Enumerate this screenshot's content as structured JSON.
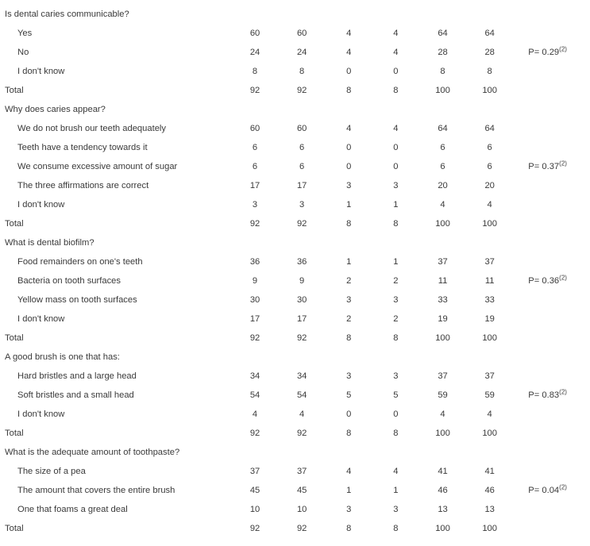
{
  "font_color": "#3a3a3a",
  "background": "#ffffff",
  "groups": [
    {
      "question": "Is dental caries communicable?",
      "p_value": "P= 0.29",
      "p_sup": "(2)",
      "p_span_start": 1,
      "p_span_rows": 3,
      "rows": [
        {
          "type": "answer",
          "label": "Yes",
          "vals": [
            "60",
            "60",
            "4",
            "4",
            "64",
            "64"
          ]
        },
        {
          "type": "answer",
          "label": "No",
          "vals": [
            "24",
            "24",
            "4",
            "4",
            "28",
            "28"
          ]
        },
        {
          "type": "answer",
          "label": "I don't know",
          "vals": [
            "8",
            "8",
            "0",
            "0",
            "8",
            "8"
          ]
        },
        {
          "type": "total",
          "label": "Total",
          "vals": [
            "92",
            "92",
            "8",
            "8",
            "100",
            "100"
          ]
        }
      ]
    },
    {
      "question": "Why does caries appear?",
      "p_value": "P= 0.37",
      "p_sup": "(2)",
      "p_span_start": 2,
      "p_span_rows": 3,
      "rows": [
        {
          "type": "answer",
          "label": "We do not brush our teeth adequately",
          "vals": [
            "60",
            "60",
            "4",
            "4",
            "64",
            "64"
          ]
        },
        {
          "type": "answer",
          "label": "Teeth have a tendency towards it",
          "vals": [
            "6",
            "6",
            "0",
            "0",
            "6",
            "6"
          ]
        },
        {
          "type": "answer",
          "label": "We consume excessive amount of sugar",
          "vals": [
            "6",
            "6",
            "0",
            "0",
            "6",
            "6"
          ]
        },
        {
          "type": "answer",
          "label": "The three affirmations are correct",
          "vals": [
            "17",
            "17",
            "3",
            "3",
            "20",
            "20"
          ]
        },
        {
          "type": "answer",
          "label": "I don't know",
          "vals": [
            "3",
            "3",
            "1",
            "1",
            "4",
            "4"
          ]
        },
        {
          "type": "total",
          "label": "Total",
          "vals": [
            "92",
            "92",
            "8",
            "8",
            "100",
            "100"
          ]
        }
      ]
    },
    {
      "question": "What is dental biofilm?",
      "p_value": "P= 0.36",
      "p_sup": "(2)",
      "p_span_start": 2,
      "p_span_rows": 1,
      "rows": [
        {
          "type": "answer",
          "label": "Food remainders on one's teeth",
          "vals": [
            "36",
            "36",
            "1",
            "1",
            "37",
            "37"
          ]
        },
        {
          "type": "answer",
          "label": "Bacteria on tooth surfaces",
          "vals": [
            "9",
            "9",
            "2",
            "2",
            "11",
            "11"
          ]
        },
        {
          "type": "answer",
          "label": "Yellow mass on tooth surfaces",
          "vals": [
            "30",
            "30",
            "3",
            "3",
            "33",
            "33"
          ]
        },
        {
          "type": "answer",
          "label": "I don't know",
          "vals": [
            "17",
            "17",
            "2",
            "2",
            "19",
            "19"
          ]
        },
        {
          "type": "total",
          "label": "Total",
          "vals": [
            "92",
            "92",
            "8",
            "8",
            "100",
            "100"
          ]
        }
      ]
    },
    {
      "question": "A good brush is one that has:",
      "p_value": "P= 0.83",
      "p_sup": "(2)",
      "p_span_start": 1,
      "p_span_rows": 3,
      "rows": [
        {
          "type": "answer",
          "label": "Hard bristles and a large head",
          "vals": [
            "34",
            "34",
            "3",
            "3",
            "37",
            "37"
          ]
        },
        {
          "type": "answer",
          "label": "Soft bristles and a small head",
          "vals": [
            "54",
            "54",
            "5",
            "5",
            "59",
            "59"
          ]
        },
        {
          "type": "answer",
          "label": "I don't know",
          "vals": [
            "4",
            "4",
            "0",
            "0",
            "4",
            "4"
          ]
        },
        {
          "type": "total",
          "label": "Total",
          "vals": [
            "92",
            "92",
            "8",
            "8",
            "100",
            "100"
          ]
        }
      ]
    },
    {
      "question": "What is the adequate amount of toothpaste?",
      "p_value": "P= 0.04",
      "p_sup": "(2)",
      "p_span_start": 1,
      "p_span_rows": 3,
      "rows": [
        {
          "type": "answer",
          "label": "The size of a pea",
          "vals": [
            "37",
            "37",
            "4",
            "4",
            "41",
            "41"
          ]
        },
        {
          "type": "answer",
          "label": "The amount that covers the entire brush",
          "vals": [
            "45",
            "45",
            "1",
            "1",
            "46",
            "46"
          ]
        },
        {
          "type": "answer",
          "label": "One that foams a great deal",
          "vals": [
            "10",
            "10",
            "3",
            "3",
            "13",
            "13"
          ]
        },
        {
          "type": "total",
          "label": "Total",
          "vals": [
            "92",
            "92",
            "8",
            "8",
            "100",
            "100"
          ]
        }
      ]
    }
  ]
}
